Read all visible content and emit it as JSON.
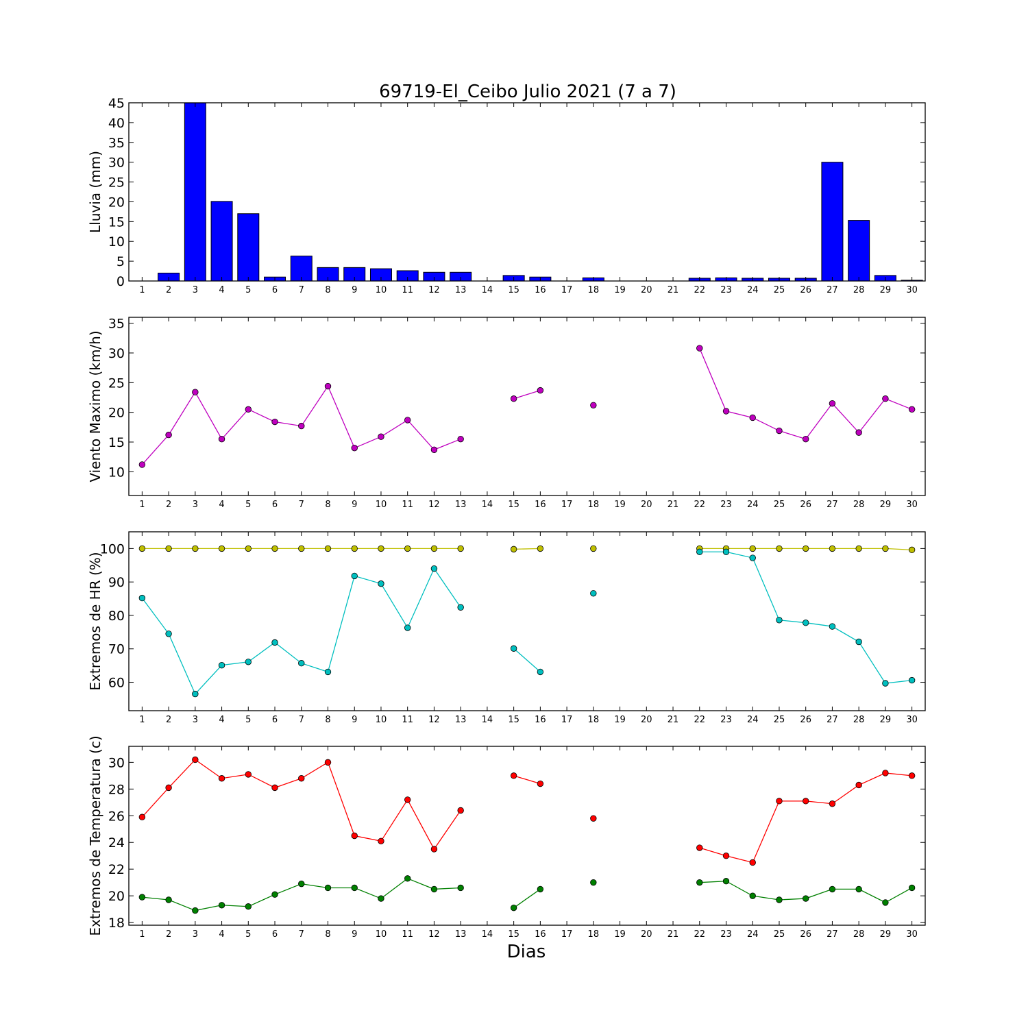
{
  "title": "69719-El_Ceibo Julio 2021  (7 a 7)",
  "xlabel": "Dias",
  "colors": {
    "rain": "#0000ff",
    "wind": "#bf00bf",
    "hr_max": "#bfbf00",
    "hr_min": "#00bfbf",
    "temp_max": "#ff0000",
    "temp_min": "#008000"
  },
  "chart_data": [
    {
      "type": "bar",
      "ylabel": "Lluvia (mm)",
      "ylim": [
        0,
        45
      ],
      "yticks": [
        0,
        5,
        10,
        15,
        20,
        25,
        30,
        35,
        40,
        45
      ],
      "x": [
        1,
        2,
        3,
        4,
        5,
        6,
        7,
        8,
        9,
        10,
        11,
        12,
        13,
        14,
        15,
        16,
        17,
        18,
        19,
        20,
        21,
        22,
        23,
        24,
        25,
        26,
        27,
        28,
        29,
        30
      ],
      "series": [
        {
          "values": [
            0,
            2.0,
            45,
            20.1,
            17.0,
            1.0,
            6.3,
            3.4,
            3.4,
            3.1,
            2.6,
            2.2,
            2.2,
            null,
            1.4,
            1.0,
            null,
            0.8,
            null,
            null,
            null,
            0.7,
            0.8,
            0.7,
            0.7,
            0.7,
            30.0,
            15.3,
            1.4,
            0.2
          ]
        }
      ]
    },
    {
      "type": "line",
      "ylabel": "Viento Maximo (km/h)",
      "ylim": [
        6,
        36
      ],
      "yticks": [
        10,
        15,
        20,
        25,
        30,
        35
      ],
      "x": [
        1,
        2,
        3,
        4,
        5,
        6,
        7,
        8,
        9,
        10,
        11,
        12,
        13,
        14,
        15,
        16,
        17,
        18,
        19,
        20,
        21,
        22,
        23,
        24,
        25,
        26,
        27,
        28,
        29,
        30
      ],
      "series": [
        {
          "values": [
            11.2,
            16.2,
            23.4,
            15.5,
            20.5,
            18.4,
            17.7,
            24.4,
            14.0,
            15.9,
            18.7,
            13.7,
            15.5,
            null,
            22.3,
            23.7,
            null,
            21.2,
            null,
            null,
            null,
            30.8,
            20.2,
            19.1,
            16.9,
            15.5,
            21.5,
            16.6,
            22.3,
            20.5
          ]
        }
      ]
    },
    {
      "type": "line",
      "ylabel": "Extremos de HR (%)",
      "ylim": [
        51.5,
        105
      ],
      "yticks": [
        60,
        70,
        80,
        90,
        100
      ],
      "x": [
        1,
        2,
        3,
        4,
        5,
        6,
        7,
        8,
        9,
        10,
        11,
        12,
        13,
        14,
        15,
        16,
        17,
        18,
        19,
        20,
        21,
        22,
        23,
        24,
        25,
        26,
        27,
        28,
        29,
        30
      ],
      "series": [
        {
          "values": [
            100,
            100,
            100,
            100,
            100,
            100,
            100,
            100,
            100,
            100,
            100,
            100,
            100,
            null,
            99.8,
            100,
            null,
            100,
            null,
            null,
            null,
            100,
            100,
            100,
            100,
            100,
            100,
            100,
            100,
            99.6
          ]
        },
        {
          "values": [
            85.2,
            74.5,
            56.5,
            65.1,
            66.1,
            71.9,
            65.7,
            63.1,
            91.8,
            89.5,
            76.3,
            94.0,
            82.4,
            null,
            70.1,
            63.1,
            null,
            86.6,
            null,
            null,
            null,
            99.0,
            99.0,
            97.2,
            78.6,
            77.8,
            76.7,
            72.1,
            59.7,
            60.6
          ]
        }
      ]
    },
    {
      "type": "line",
      "ylabel": "Extremos de Temperatura (c)",
      "ylim": [
        17.8,
        31.2
      ],
      "yticks": [
        18,
        20,
        22,
        24,
        26,
        28,
        30
      ],
      "x": [
        1,
        2,
        3,
        4,
        5,
        6,
        7,
        8,
        9,
        10,
        11,
        12,
        13,
        14,
        15,
        16,
        17,
        18,
        19,
        20,
        21,
        22,
        23,
        24,
        25,
        26,
        27,
        28,
        29,
        30
      ],
      "series": [
        {
          "values": [
            25.9,
            28.1,
            30.2,
            28.8,
            29.1,
            28.1,
            28.8,
            30.0,
            24.5,
            24.1,
            27.2,
            23.5,
            26.4,
            null,
            29.0,
            28.4,
            null,
            25.8,
            null,
            null,
            null,
            23.6,
            23.0,
            22.5,
            27.1,
            27.1,
            26.9,
            28.3,
            29.2,
            29.0
          ]
        },
        {
          "values": [
            19.9,
            19.7,
            18.9,
            19.3,
            19.2,
            20.1,
            20.9,
            20.6,
            20.6,
            19.8,
            21.3,
            20.5,
            20.6,
            null,
            19.1,
            20.5,
            null,
            21.0,
            null,
            null,
            null,
            21.0,
            21.1,
            20.0,
            19.7,
            19.8,
            20.5,
            20.5,
            19.5,
            20.6
          ]
        }
      ]
    }
  ]
}
